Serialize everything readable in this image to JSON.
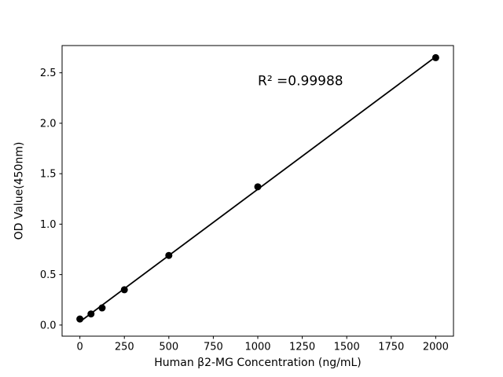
{
  "figure": {
    "background": "#ffffff"
  },
  "chart_data": {
    "type": "scatter",
    "title": "",
    "xlabel": "Human β2-MG Concentration (ng/mL)",
    "ylabel": "OD Value(450nm)",
    "x": [
      0,
      62.5,
      125,
      250,
      500,
      1000,
      2000
    ],
    "y": [
      0.06,
      0.11,
      0.17,
      0.35,
      0.69,
      1.37,
      2.65
    ],
    "fit": "linear",
    "annotation": {
      "text": "R² =0.99988",
      "r_squared": 0.99988,
      "x": 1240,
      "y": 2.42
    },
    "xticks": [
      "0",
      "250",
      "500",
      "750",
      "1000",
      "1250",
      "1500",
      "1750",
      "2000"
    ],
    "yticks": [
      "0.0",
      "0.5",
      "1.0",
      "1.5",
      "2.0",
      "2.5"
    ],
    "xlim": [
      -100,
      2100
    ],
    "ylim": [
      -0.11,
      2.77
    ],
    "grid": false,
    "legend": "none",
    "marker_color": "#000000",
    "line_color": "#000000",
    "axis_color": "#000000",
    "text_color": "#000000"
  }
}
